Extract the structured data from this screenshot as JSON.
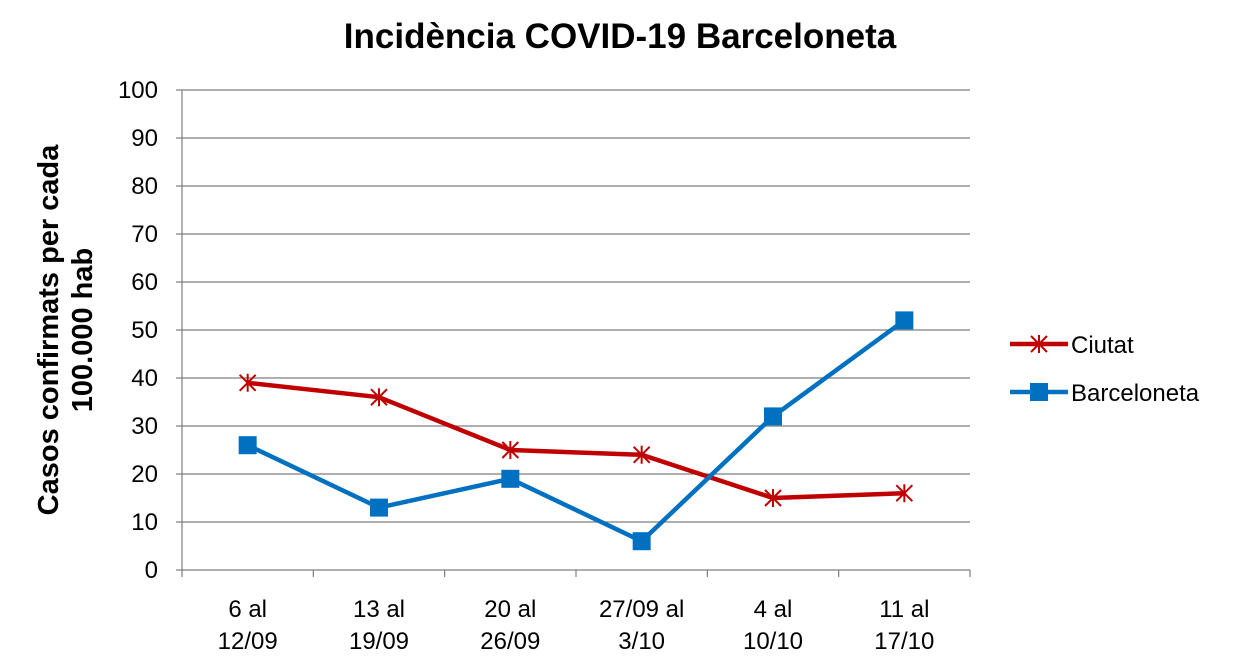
{
  "chart_data": {
    "type": "line",
    "title": "Incidència COVID-19 Barceloneta",
    "y_label": "Casos confirmats per cada\n100.000 hab",
    "categories": [
      "6 al\n12/09",
      "13 al\n19/09",
      "20 al\n26/09",
      "27/09 al\n3/10",
      "4 al\n10/10",
      "11 al\n17/10"
    ],
    "series": [
      {
        "name": "Ciutat",
        "color": "#c00000",
        "marker": "asterisk",
        "values": [
          39,
          36,
          25,
          24,
          15,
          16
        ]
      },
      {
        "name": "Barceloneta",
        "color": "#0070c0",
        "marker": "square",
        "values": [
          26,
          13,
          19,
          6,
          32,
          52
        ]
      }
    ],
    "ylim": [
      0,
      100
    ],
    "yticks": [
      0,
      10,
      20,
      30,
      40,
      50,
      60,
      70,
      80,
      90,
      100
    ],
    "grid": true,
    "legend": "right"
  }
}
